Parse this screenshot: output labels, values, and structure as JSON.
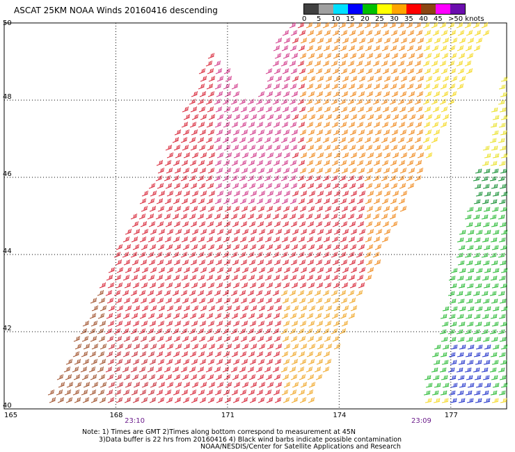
{
  "title": "ASCAT 25KM NOAA Winds 20160416 descending",
  "colorbar": {
    "labels": [
      "0",
      "5",
      "10",
      "15",
      "20",
      "25",
      "30",
      "35",
      "40",
      "45",
      ">50 knots"
    ],
    "colors": [
      "#404040",
      "#a0a0a0",
      "#00e0ff",
      "#0000ff",
      "#00c000",
      "#ffff00",
      "#ffa500",
      "#ff0000",
      "#8b4513",
      "#ff00ff",
      "#6a0dad"
    ]
  },
  "map": {
    "lat_labels": [
      "50",
      "48",
      "46",
      "44",
      "42",
      "40"
    ],
    "lat_values": [
      50,
      48,
      46,
      44,
      42,
      40
    ],
    "lon_labels": [
      "165",
      "168",
      "171",
      "174",
      "177"
    ],
    "lon_values": [
      165,
      168,
      171,
      174,
      177
    ],
    "time_labels": [
      "23:10",
      "23:09"
    ],
    "time_lons": [
      168.5,
      176.2
    ]
  },
  "notes": [
    "Note: 1) Times are GMT 2)Times along bottom correspond to measurement at 45N",
    "3)Data buffer is 22 hrs from 20160416 4) Black wind barbs indicate possible contamination",
    "NOAA/NESDIS/Center for Satellite Applications and Research"
  ]
}
